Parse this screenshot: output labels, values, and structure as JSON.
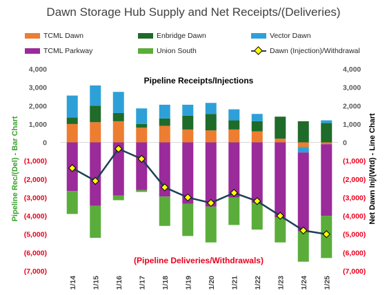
{
  "chart_data": {
    "type": "bar",
    "title": "Dawn Storage Hub Supply and Net Receipts/(Deliveries)",
    "categories": [
      "1/14",
      "1/15",
      "1/16",
      "1/17",
      "1/18",
      "1/19",
      "1/20",
      "1/21",
      "1/22",
      "1/23",
      "1/24",
      "1/25"
    ],
    "stacked": true,
    "series": [
      {
        "name": "TCML Dawn",
        "type": "bar",
        "color": "#ed7d31",
        "values": [
          1000,
          1100,
          1150,
          800,
          900,
          700,
          650,
          700,
          600,
          200,
          -250,
          -100
        ]
      },
      {
        "name": "Enbridge Dawn",
        "type": "bar",
        "color": "#1e6b2a",
        "values": [
          350,
          900,
          450,
          200,
          400,
          750,
          900,
          500,
          550,
          1200,
          1150,
          1050
        ]
      },
      {
        "name": "Vector Dawn",
        "type": "bar",
        "color": "#2ea0d8",
        "values": [
          1200,
          1100,
          1150,
          850,
          750,
          600,
          600,
          600,
          400,
          0,
          -300,
          150
        ]
      },
      {
        "name": "TCML Parkway",
        "type": "bar",
        "color": "#9b2a9b",
        "values": [
          -2650,
          -3450,
          -2900,
          -2600,
          -2950,
          -3350,
          -3500,
          -3000,
          -3300,
          -4100,
          -4300,
          -3900
        ]
      },
      {
        "name": "Union South",
        "type": "bar",
        "color": "#5aad3a",
        "values": [
          -1250,
          -1750,
          -250,
          -100,
          -1600,
          -1750,
          -1950,
          -1500,
          -1450,
          -1350,
          -1650,
          -2300
        ]
      },
      {
        "name": "Dawn (Injection)/Withdrawal",
        "type": "line",
        "color": "#1f3f56",
        "marker_color": "#ffff00",
        "values": [
          -1400,
          -2100,
          -350,
          -900,
          -2450,
          -3000,
          -3300,
          -2750,
          -3200,
          -4000,
          -4800,
          -5000
        ]
      }
    ],
    "ylim": [
      -7000,
      4000
    ],
    "yticks": [
      4000,
      3000,
      2000,
      1000,
      0,
      -1000,
      -2000,
      -3000,
      -4000,
      -5000,
      -6000,
      -7000
    ],
    "ytick_labels_left": [
      "4,000",
      "3,000",
      "2,000",
      "1,000",
      "0",
      "(1,000)",
      "(2,000)",
      "(3,000)",
      "(4,000)",
      "(5,000)",
      "(6,000)",
      "(7,000)"
    ],
    "ytick_labels_right": [
      "4,000",
      "3,000",
      "2,000",
      "1,000",
      "0",
      "(1,000)",
      "(2,000)",
      "(3,000)",
      "(4,000)",
      "(5,000)",
      "(6,000)",
      "(7,000)"
    ],
    "ylabel_left": "Pipeline Rec/(Del) - Bar Chart",
    "ylabel_right": "Net Dawn Inj/(Wtd) - Line Chart",
    "left_tick_colors": {
      "positive": "#595959",
      "negative": "#e8001c"
    },
    "right_tick_colors": {
      "positive": "#595959",
      "negative": "#e8001c"
    },
    "annotations": {
      "top": "Pipeline Receipts/Injections",
      "bottom": "(Pipeline Deliveries/Withdrawals)"
    },
    "legend_position": "top",
    "grid": false
  }
}
